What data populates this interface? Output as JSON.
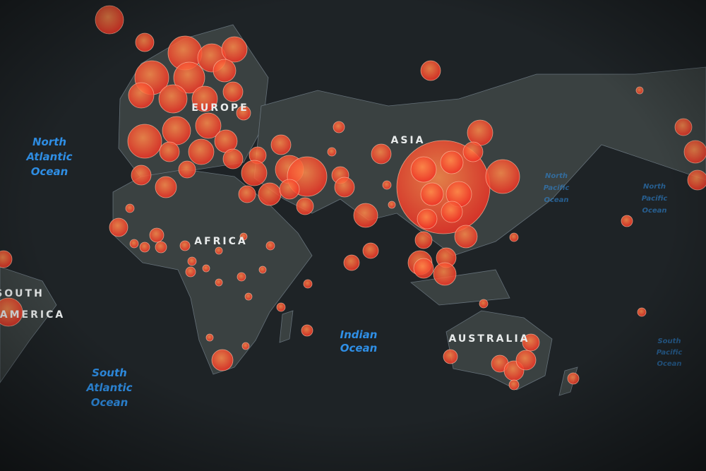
{
  "map": {
    "ocean_labels": [
      {
        "lines": [
          "North",
          "Atlantic",
          "Ocean"
        ]
      },
      {
        "lines": [
          "South",
          "Atlantic",
          "Ocean"
        ]
      },
      {
        "lines": [
          "Indian",
          "Ocean"
        ]
      },
      {
        "lines": [
          "North",
          "Pacific",
          "Ocean"
        ]
      },
      {
        "lines": [
          "North",
          "Pacific",
          "Ocean"
        ]
      },
      {
        "lines": [
          "South",
          "Pacific",
          "Ocean"
        ]
      }
    ],
    "region_labels": [
      {
        "lines": [
          "EUROPE"
        ]
      },
      {
        "lines": [
          "ASIA"
        ]
      },
      {
        "lines": [
          "AFRICA"
        ]
      },
      {
        "lines": [
          "AUSTRALIA"
        ]
      },
      {
        "lines": [
          "SOUTH",
          "AMERICA"
        ]
      }
    ]
  }
}
